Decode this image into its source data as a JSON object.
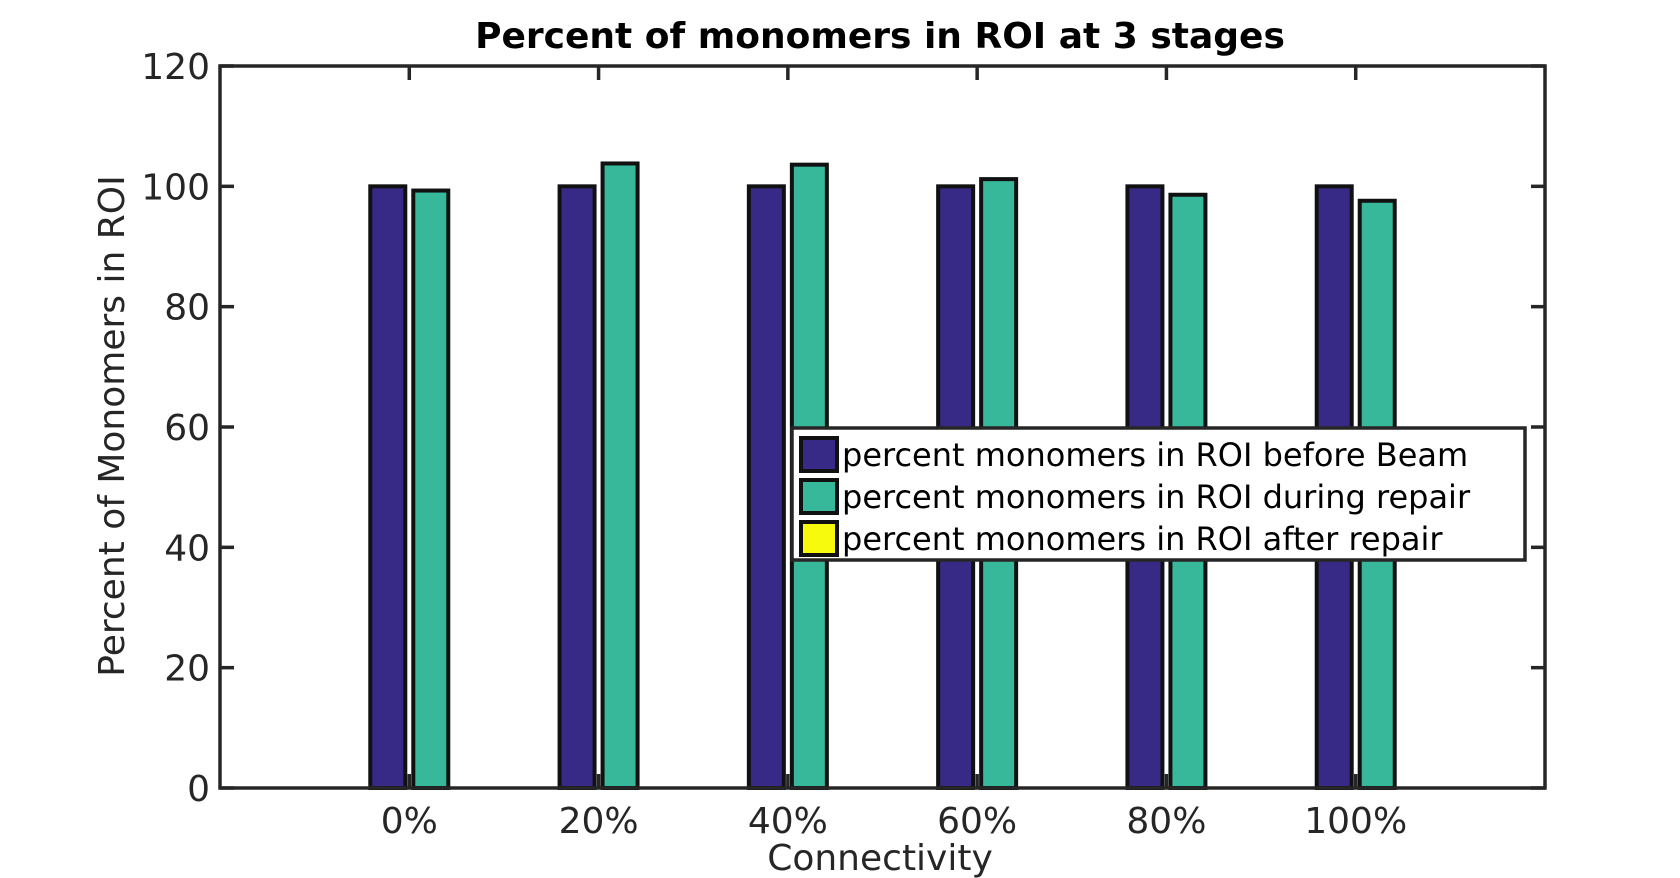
{
  "chart_data": {
    "type": "bar",
    "title": "Percent of monomers in ROI at 3 stages",
    "xlabel": "Connectivity",
    "ylabel": "Percent of Monomers in ROI",
    "categories": [
      "0%",
      "20%",
      "40%",
      "60%",
      "80%",
      "100%"
    ],
    "ylim": [
      0,
      120
    ],
    "yticks": [
      0,
      20,
      40,
      60,
      80,
      100,
      120
    ],
    "grid": false,
    "legend_position": "right",
    "series": [
      {
        "name": "percent monomers in ROI before Beam",
        "color": "#372a87",
        "values": [
          100,
          100,
          100,
          100,
          100,
          100
        ]
      },
      {
        "name": "percent monomers in ROI during repair",
        "color": "#37b89b",
        "values": [
          99.3,
          103.8,
          103.6,
          101.2,
          98.6,
          97.6
        ]
      },
      {
        "name": "percent monomers in ROI after repair",
        "color": "#f7fa0c",
        "values": [
          0,
          0,
          0,
          0,
          0,
          0
        ]
      }
    ]
  }
}
